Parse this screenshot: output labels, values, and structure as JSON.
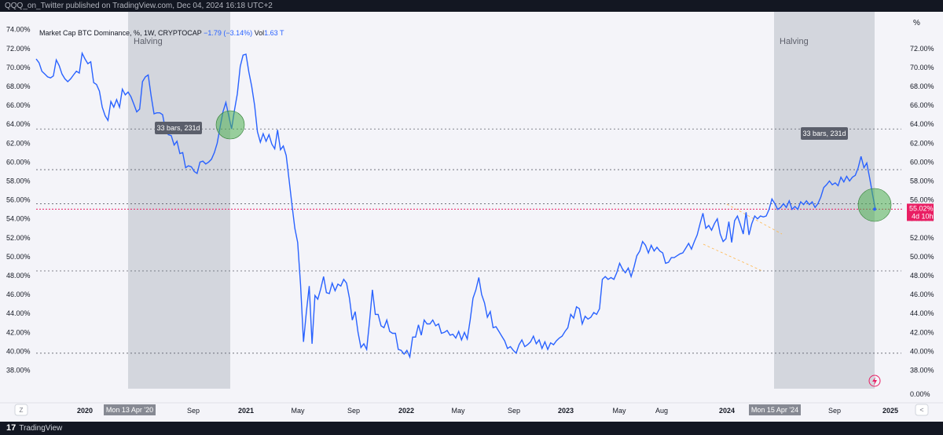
{
  "header": {
    "published": "QQQ_on_Twitter published on TradingView.com, Dec 04, 2024 16:18 UTC+2"
  },
  "legend": {
    "title": "Market Cap BTC Dominance, %, 1W, CRYPTOCAP",
    "change": "−1.79 (−3.14%)",
    "vol_label": "Vol",
    "vol_value": "1.63 T"
  },
  "footer": {
    "brand": "TradingView",
    "brand_mark": "17"
  },
  "colors": {
    "line": "#2962ff",
    "halving_zone": "#cdd0d8",
    "price_line": "#e91e63",
    "circle": "#4caf50"
  },
  "chart_data": {
    "type": "line",
    "left_axis": {
      "labels": [
        "74.00%",
        "72.00%",
        "70.00%",
        "68.00%",
        "66.00%",
        "64.00%",
        "62.00%",
        "60.00%",
        "58.00%",
        "56.00%",
        "54.00%",
        "52.00%",
        "50.00%",
        "48.00%",
        "46.00%",
        "44.00%",
        "42.00%",
        "40.00%",
        "38.00%"
      ]
    },
    "right_axis": {
      "unit": "%",
      "labels": [
        "72.00%",
        "70.00%",
        "68.00%",
        "66.00%",
        "64.00%",
        "62.00%",
        "60.00%",
        "58.00%",
        "56.00%",
        "54.00%",
        "52.00%",
        "50.00%",
        "48.00%",
        "46.00%",
        "44.00%",
        "42.00%",
        "40.00%",
        "38.00%",
        "0.00%"
      ]
    },
    "x_axis": {
      "labels": [
        "2020",
        "May",
        "Sep",
        "2021",
        "May",
        "Sep",
        "2022",
        "May",
        "Sep",
        "2023",
        "May",
        "Aug",
        "2024",
        "May",
        "Sep",
        "2025"
      ],
      "z_button": "Z",
      "nav_button": "<"
    },
    "halvings": [
      {
        "label": "Halving",
        "date_label": "Mon 13 Apr '20",
        "measure_label": "33 bars, 231d"
      },
      {
        "label": "Halving",
        "date_label": "Mon 15 Apr '24",
        "measure_label": "33 bars, 231d"
      }
    ],
    "last_price": {
      "value": "55.02%",
      "countdown": "4d 10h"
    },
    "horizontal_levels": [
      63.5,
      59.2,
      55.6,
      48.5,
      39.8
    ],
    "series": [
      {
        "y": [
          70.9,
          70.5,
          69.6,
          69.3,
          69.0,
          68.9,
          69.1,
          70.8,
          70.2,
          69.3,
          68.8,
          68.5,
          68.8,
          69.2,
          69.6,
          69.4,
          71.5,
          70.9,
          70.4,
          70.6,
          68.4,
          68.2,
          67.5,
          65.8,
          64.9,
          64.4,
          66.4,
          65.8,
          66.6,
          65.8,
          67.7,
          67.1,
          67.4,
          66.9,
          66.1,
          65.3,
          65.6,
          68.5,
          69.0,
          69.2,
          67.0,
          65.1,
          65.2,
          65.2,
          65.0,
          63.4,
          62.9,
          62.8,
          61.8,
          62.2,
          60.9,
          61.0,
          59.4,
          59.6,
          59.5,
          59.0,
          58.8,
          60.0,
          60.1,
          59.8,
          60.0,
          60.3,
          61.0,
          62.0,
          63.7,
          65.3,
          66.3,
          64.9,
          63.5,
          65.5,
          67.2,
          70.1,
          71.3,
          71.4,
          69.5,
          68.0,
          66.0,
          63.2,
          62.1,
          63.0,
          62.2,
          62.9,
          61.9,
          61.4,
          63.4,
          61.3,
          61.7,
          60.7,
          58.1,
          55.5,
          53.0,
          51.5,
          47.0,
          41.0,
          44.1,
          46.9,
          40.8,
          45.9,
          45.5,
          46.6,
          47.9,
          46.2,
          46.1,
          47.2,
          46.4,
          47.1,
          46.9,
          47.6,
          47.2,
          45.6,
          43.3,
          44.2,
          42.0,
          40.4,
          40.8,
          40.2,
          43.2,
          46.5,
          43.9,
          43.9,
          42.7,
          42.5,
          43.3,
          42.1,
          41.9,
          41.9,
          40.2,
          40.1,
          39.7,
          40.1,
          39.4,
          41.5,
          41.5,
          42.8,
          41.7,
          43.3,
          42.9,
          42.9,
          43.3,
          42.7,
          42.9,
          41.9,
          42.0,
          42.2,
          41.7,
          41.8,
          41.4,
          42.1,
          41.2,
          42.0,
          41.3,
          43.3,
          45.6,
          46.5,
          47.8,
          46.0,
          45.1,
          43.6,
          44.2,
          42.5,
          42.6,
          42.1,
          41.6,
          41.1,
          40.3,
          40.5,
          40.1,
          39.8,
          40.7,
          41.2,
          40.5,
          40.7,
          41.0,
          41.6,
          40.8,
          41.2,
          40.3,
          41.0,
          40.2,
          40.9,
          40.7,
          41.1,
          41.4,
          41.6,
          42.1,
          42.5,
          43.9,
          43.5,
          44.7,
          44.5,
          42.9,
          43.7,
          43.4,
          43.6,
          44.1,
          43.9,
          44.5,
          47.6,
          47.9,
          47.6,
          47.8,
          47.6,
          48.3,
          49.3,
          48.7,
          48.3,
          48.8,
          47.9,
          48.9,
          50.1,
          50.6,
          51.6,
          51.2,
          50.4,
          51.2,
          50.6,
          51.0,
          50.6,
          50.4,
          49.3,
          49.4,
          49.9,
          49.9,
          50.1,
          50.3,
          50.4,
          50.9,
          51.4,
          50.8,
          51.6,
          52.3,
          53.5,
          54.6,
          53.0,
          53.3,
          52.8,
          53.5,
          54.0,
          52.4,
          51.6,
          51.9,
          53.7,
          51.5,
          53.8,
          54.3,
          53.4,
          52.4,
          54.7,
          52.3,
          53.5,
          54.3,
          54.0,
          54.3,
          54.2,
          54.3,
          55.0,
          56.1,
          55.6,
          55.0,
          55.2,
          55.6,
          55.2,
          55.9,
          55.0,
          55.3,
          55.0,
          55.8,
          55.5,
          55.9,
          55.5,
          55.8,
          55.2,
          55.6,
          56.3,
          57.3,
          57.6,
          58.0,
          57.6,
          57.8,
          57.5,
          58.4,
          57.9,
          58.5,
          58.0,
          58.4,
          58.6,
          59.4,
          60.6,
          59.4,
          59.9,
          58.3,
          56.6,
          55.0
        ]
      }
    ]
  }
}
